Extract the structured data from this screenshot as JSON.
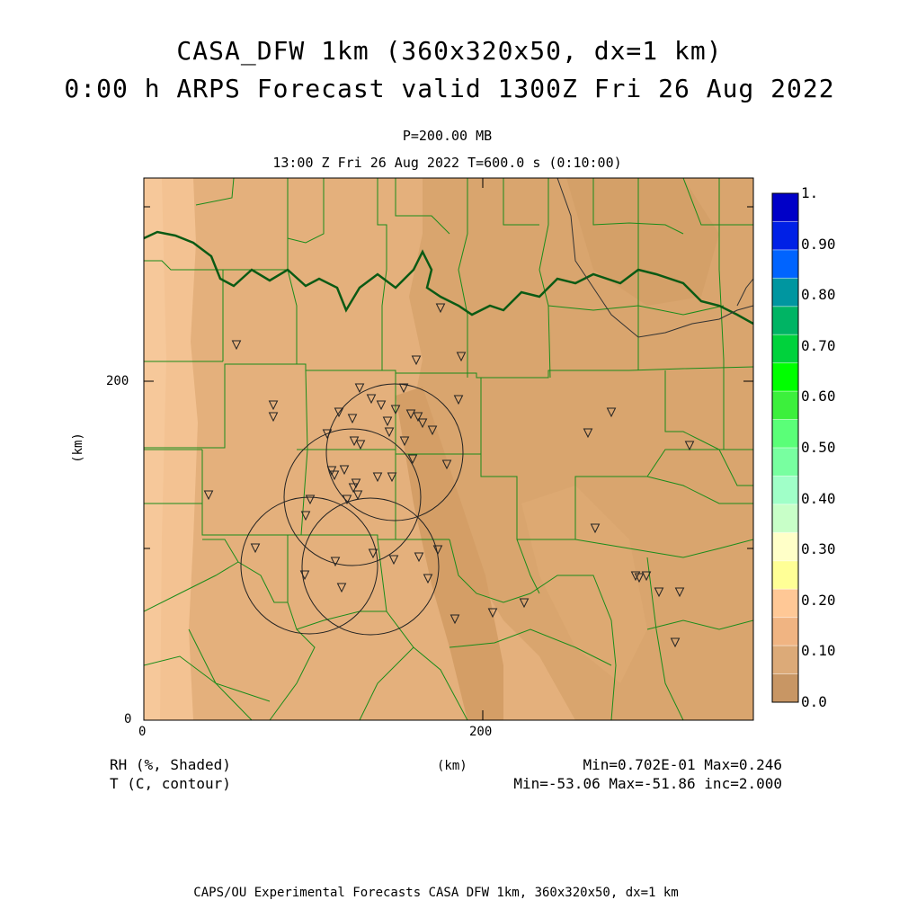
{
  "title": {
    "line1": "CASA_DFW 1km (360x320x50, dx=1 km)",
    "line2": "0:00 h ARPS Forecast valid 1300Z Fri 26 Aug 2022"
  },
  "subtitle": {
    "level": "P=200.00 MB",
    "time": "13:00 Z Fri 26 Aug 2022   T=600.0 s (0:10:00)"
  },
  "axes": {
    "x_label": "(km)",
    "y_label": "(km)",
    "x_ticks": [
      "0",
      "200"
    ],
    "y_ticks": [
      "0",
      "200"
    ]
  },
  "colorbar": {
    "labels": [
      "1.",
      "0.90",
      "0.80",
      "0.70",
      "0.60",
      "0.50",
      "0.40",
      "0.30",
      "0.20",
      "0.10",
      "0.0"
    ],
    "colors": [
      "#0000c8",
      "#0020e6",
      "#0064ff",
      "#0096a0",
      "#00b464",
      "#00d23c",
      "#00ff00",
      "#3cf03c",
      "#5aff78",
      "#78ffa0",
      "#a0ffc8",
      "#c8ffc8",
      "#ffffc8",
      "#ffff96",
      "#ffc896",
      "#f0b482",
      "#dcaa78",
      "#c89664"
    ]
  },
  "stats": {
    "field1_name": "RH (%, Shaded)",
    "field2_name": "T (C, contour)",
    "field1_range": "Min=0.702E-01 Max=0.246",
    "field2_range": "Min=-53.06 Max=-51.86 inc=2.000"
  },
  "footer": "CAPS/OU Experimental Forecasts  CASA DFW 1km, 360x320x50, dx=1 km",
  "map": {
    "x_range_km": [
      0,
      360
    ],
    "y_range_km": [
      0,
      320
    ],
    "fill_colors": [
      "#d9a56e",
      "#e4b07c",
      "#f3c292"
    ]
  }
}
